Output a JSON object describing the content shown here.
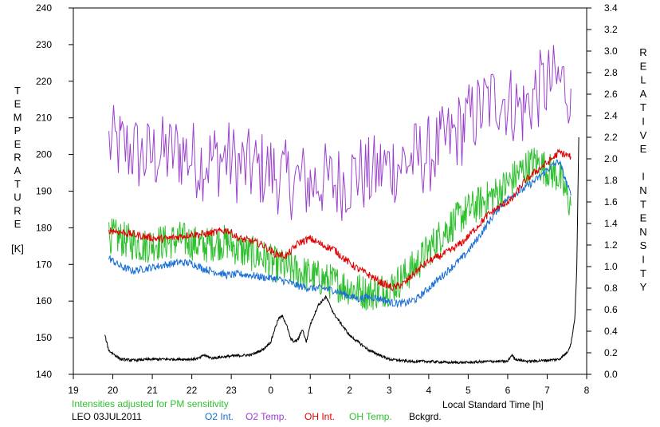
{
  "chart_data": {
    "type": "line",
    "xlabel": "Local Standard Time [h]",
    "left_axis": {
      "label": "TEMPERATURE",
      "unit": "[K]",
      "ylim": [
        140,
        240
      ],
      "ticks": [
        140,
        150,
        160,
        170,
        180,
        190,
        200,
        210,
        220,
        230,
        240
      ]
    },
    "right_axis": {
      "label_words": [
        "RELATIVE",
        "INTENSITY"
      ],
      "ylim": [
        0.0,
        3.4
      ],
      "ticks": [
        "0.0",
        "0.2",
        "0.4",
        "0.6",
        "0.8",
        "1.0",
        "1.2",
        "1.4",
        "1.6",
        "1.8",
        "2.0",
        "2.2",
        "2.4",
        "2.6",
        "2.8",
        "3.0",
        "3.2",
        "3.4"
      ]
    },
    "x_ticks": [
      "19",
      "20",
      "21",
      "22",
      "23",
      "0",
      "1",
      "2",
      "3",
      "4",
      "5",
      "6",
      "7",
      "8"
    ],
    "xlim": [
      19,
      32
    ],
    "grid": false,
    "note": "Intensities adjusted for PM sensitivity",
    "station_date": "LEO 03JUL2011",
    "colors": {
      "O2 Int.": "#1a6fd6",
      "O2 Temp.": "#9a3fd0",
      "OH Int.": "#e00000",
      "OH Temp.": "#2fc02f",
      "Bckgrd.": "#000000",
      "note": "#2fc02f"
    },
    "legend": [
      "O2 Int.",
      "O2 Temp.",
      "OH Int.",
      "OH Temp.",
      "Bckgrd."
    ],
    "series": [
      {
        "name": "O2 Temp.",
        "axis": "left",
        "x": [
          19.9,
          20.2,
          20.5,
          20.8,
          21.1,
          21.4,
          21.7,
          22.0,
          22.3,
          22.6,
          22.9,
          23.2,
          23.5,
          23.8,
          24.1,
          24.4,
          24.7,
          25.0,
          25.3,
          25.6,
          25.9,
          26.2,
          26.5,
          26.8,
          27.1,
          27.4,
          27.7,
          28.0,
          28.3,
          28.6,
          28.9,
          29.2,
          29.5,
          29.8,
          30.1,
          30.4,
          30.7,
          31.0,
          31.3,
          31.6
        ],
        "y": [
          203,
          202,
          201,
          199,
          200,
          200,
          201,
          199,
          198,
          199,
          199,
          197,
          196,
          196,
          195,
          193,
          193,
          192,
          193,
          192,
          193,
          195,
          194,
          196,
          197,
          198,
          199,
          200,
          202,
          205,
          208,
          211,
          214,
          216,
          214,
          212,
          217,
          219,
          220,
          218
        ]
      },
      {
        "name": "O2 Int.",
        "axis": "right",
        "x": [
          19.9,
          20.2,
          20.5,
          20.8,
          21.1,
          21.4,
          21.7,
          22.0,
          22.3,
          22.6,
          22.9,
          23.2,
          23.5,
          23.8,
          24.1,
          24.4,
          24.7,
          25.0,
          25.3,
          25.6,
          25.9,
          26.2,
          26.5,
          26.8,
          27.1,
          27.4,
          27.7,
          28.0,
          28.3,
          28.6,
          28.9,
          29.2,
          29.5,
          29.8,
          30.1,
          30.4,
          30.7,
          31.0,
          31.3,
          31.6
        ],
        "y": [
          1.08,
          1.0,
          0.96,
          0.98,
          1.0,
          1.02,
          1.04,
          1.03,
          0.98,
          0.95,
          0.92,
          0.93,
          0.92,
          0.9,
          0.89,
          0.86,
          0.82,
          0.8,
          0.8,
          0.78,
          0.74,
          0.7,
          0.72,
          0.7,
          0.66,
          0.66,
          0.7,
          0.8,
          0.9,
          1.0,
          1.1,
          1.24,
          1.4,
          1.56,
          1.66,
          1.72,
          1.8,
          1.9,
          1.98,
          1.66
        ]
      },
      {
        "name": "OH Int.",
        "axis": "right",
        "x": [
          19.9,
          20.2,
          20.5,
          20.8,
          21.1,
          21.4,
          21.7,
          22.0,
          22.3,
          22.6,
          22.9,
          23.2,
          23.5,
          23.8,
          24.1,
          24.4,
          24.7,
          25.0,
          25.3,
          25.6,
          25.9,
          26.2,
          26.5,
          26.8,
          27.1,
          27.4,
          27.7,
          28.0,
          28.3,
          28.6,
          28.9,
          29.2,
          29.5,
          29.8,
          30.1,
          30.4,
          30.7,
          31.0,
          31.3,
          31.6
        ],
        "y": [
          1.34,
          1.32,
          1.3,
          1.28,
          1.26,
          1.26,
          1.28,
          1.3,
          1.3,
          1.32,
          1.34,
          1.26,
          1.24,
          1.2,
          1.12,
          1.1,
          1.22,
          1.26,
          1.2,
          1.16,
          1.06,
          0.98,
          0.92,
          0.85,
          0.8,
          0.85,
          0.96,
          1.05,
          1.1,
          1.16,
          1.24,
          1.36,
          1.48,
          1.56,
          1.62,
          1.78,
          1.88,
          1.96,
          2.06,
          2.02
        ]
      },
      {
        "name": "OH Temp.",
        "axis": "left",
        "x": [
          19.9,
          20.2,
          20.5,
          20.8,
          21.1,
          21.4,
          21.7,
          22.0,
          22.3,
          22.6,
          22.9,
          23.2,
          23.5,
          23.8,
          24.1,
          24.4,
          24.7,
          25.0,
          25.3,
          25.6,
          25.9,
          26.2,
          26.5,
          26.8,
          27.1,
          27.4,
          27.7,
          28.0,
          28.3,
          28.6,
          28.9,
          29.2,
          29.5,
          29.8,
          30.1,
          30.4,
          30.7,
          31.0,
          31.3,
          31.6
        ],
        "y": [
          178,
          177,
          176,
          175,
          176,
          176,
          177,
          176,
          175,
          176,
          176,
          174,
          173,
          172,
          170,
          169,
          168,
          167,
          166,
          165,
          164,
          163,
          162,
          163,
          164,
          167,
          170,
          174,
          178,
          181,
          184,
          186,
          188,
          190,
          193,
          196,
          198,
          196,
          194,
          186
        ]
      },
      {
        "name": "Bckgrd.",
        "axis": "right",
        "x": [
          19.8,
          19.9,
          20.2,
          20.5,
          21.0,
          21.5,
          22.0,
          22.2,
          22.3,
          22.5,
          23.0,
          23.5,
          23.8,
          24.0,
          24.1,
          24.2,
          24.3,
          24.4,
          24.5,
          24.6,
          24.7,
          24.8,
          24.9,
          25.0,
          25.2,
          25.4,
          25.6,
          26.0,
          26.5,
          27.0,
          27.5,
          28.0,
          28.5,
          29.0,
          29.5,
          30.0,
          30.1,
          30.2,
          30.5,
          31.0,
          31.3,
          31.5,
          31.6,
          31.7,
          31.75,
          31.8
        ],
        "y": [
          0.36,
          0.22,
          0.14,
          0.13,
          0.14,
          0.14,
          0.14,
          0.15,
          0.18,
          0.15,
          0.17,
          0.18,
          0.23,
          0.3,
          0.42,
          0.52,
          0.54,
          0.46,
          0.33,
          0.3,
          0.33,
          0.42,
          0.3,
          0.46,
          0.64,
          0.72,
          0.56,
          0.36,
          0.22,
          0.14,
          0.12,
          0.12,
          0.11,
          0.11,
          0.12,
          0.12,
          0.18,
          0.14,
          0.12,
          0.13,
          0.14,
          0.2,
          0.28,
          0.52,
          0.98,
          2.2
        ]
      }
    ]
  }
}
